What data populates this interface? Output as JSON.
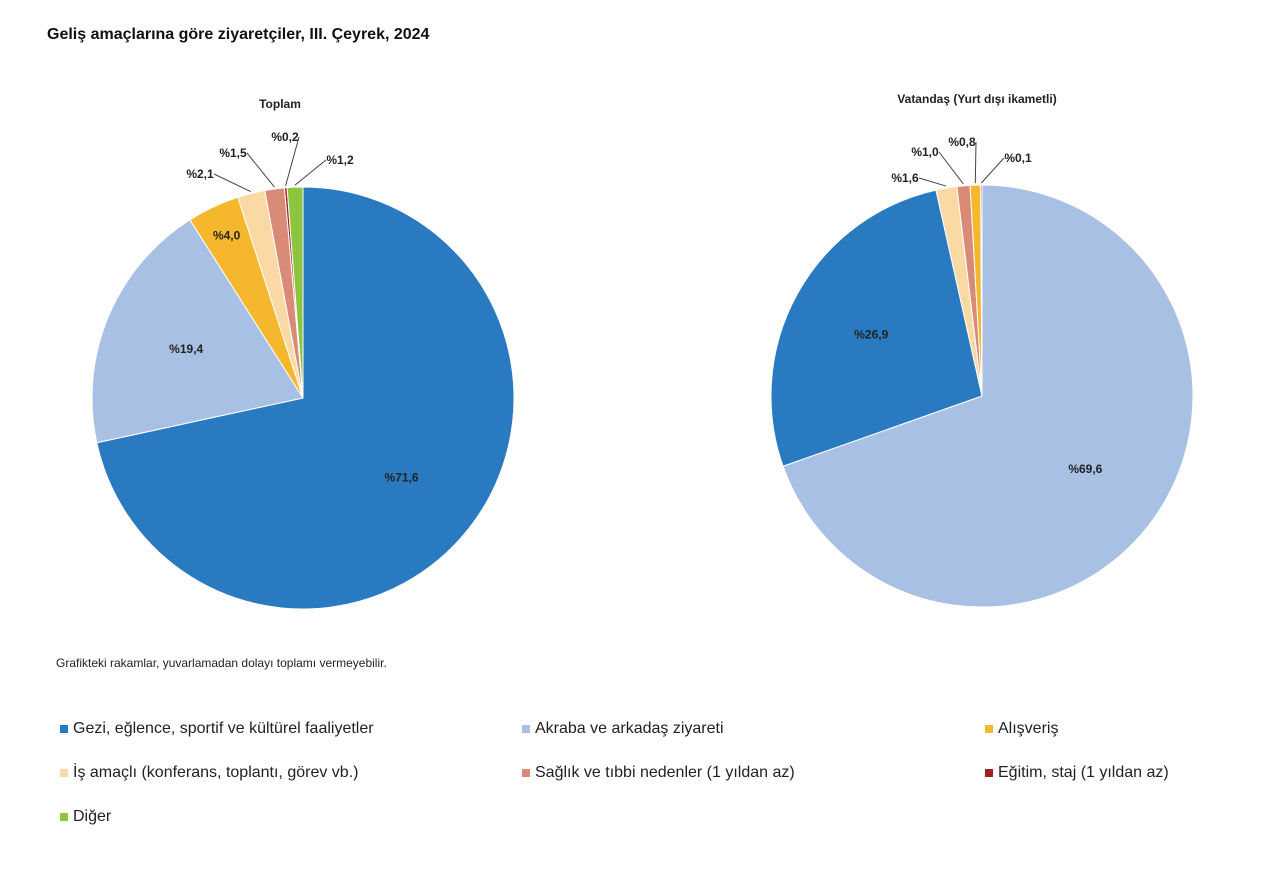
{
  "chart_data": [
    {
      "type": "pie",
      "title": "Toplam",
      "slices": [
        {
          "category": "Gezi, eğlence, sportif ve kültürel faaliyetler",
          "value": 71.6,
          "label": "%71,6"
        },
        {
          "category": "Akraba ve arkadaş ziyareti",
          "value": 19.4,
          "label": "%19,4"
        },
        {
          "category": "Alışveriş",
          "value": 4.0,
          "label": "%4,0"
        },
        {
          "category": "İş amaçlı (konferans, toplantı, görev vb.)",
          "value": 2.1,
          "label": "%2,1"
        },
        {
          "category": "Sağlık ve tıbbi nedenler (1 yıldan az)",
          "value": 1.5,
          "label": "%1,5"
        },
        {
          "category": "Eğitim, staj (1 yıldan az)",
          "value": 0.2,
          "label": "%0,2"
        },
        {
          "category": "Diğer",
          "value": 1.2,
          "label": "%1,2"
        }
      ]
    },
    {
      "type": "pie",
      "title": "Vatandaş (Yurt dışı ikametli)",
      "slices": [
        {
          "category": "Akraba ve arkadaş ziyareti",
          "value": 69.6,
          "label": "%69,6"
        },
        {
          "category": "Gezi, eğlence, sportif ve kültürel faaliyetler",
          "value": 26.9,
          "label": "%26,9"
        },
        {
          "category": "İş amaçlı (konferans, toplantı, görev vb.)",
          "value": 1.6,
          "label": "%1,6"
        },
        {
          "category": "Sağlık ve tıbbi nedenler (1 yıldan az)",
          "value": 1.0,
          "label": "%1,0"
        },
        {
          "category": "Alışveriş",
          "value": 0.8,
          "label": "%0,8"
        },
        {
          "category": "Eğitim, staj (1 yıldan az)",
          "value": 0.1,
          "label": "%0,1"
        }
      ]
    }
  ],
  "title": "Geliş amaçlarına göre ziyaretçiler, III. Çeyrek, 2024",
  "note": "Grafikteki rakamlar, yuvarlamadan dolayı toplamı vermeyebilir.",
  "legend": [
    {
      "label": "Gezi, eğlence, sportif ve kültürel faaliyetler",
      "color": "#2a7ac2"
    },
    {
      "label": "Akraba ve arkadaş ziyareti",
      "color": "#a7c0e3"
    },
    {
      "label": "Alışveriş",
      "color": "#f5b72d"
    },
    {
      "label": "İş amaçlı (konferans, toplantı, görev vb.)",
      "color": "#fbd9a4"
    },
    {
      "label": "Sağlık ve tıbbi nedenler (1 yıldan az)",
      "color": "#d98b78"
    },
    {
      "label": "Eğitim, staj (1 yıldan az)",
      "color": "#a3201d"
    },
    {
      "label": "Diğer",
      "color": "#8cc63e"
    }
  ]
}
